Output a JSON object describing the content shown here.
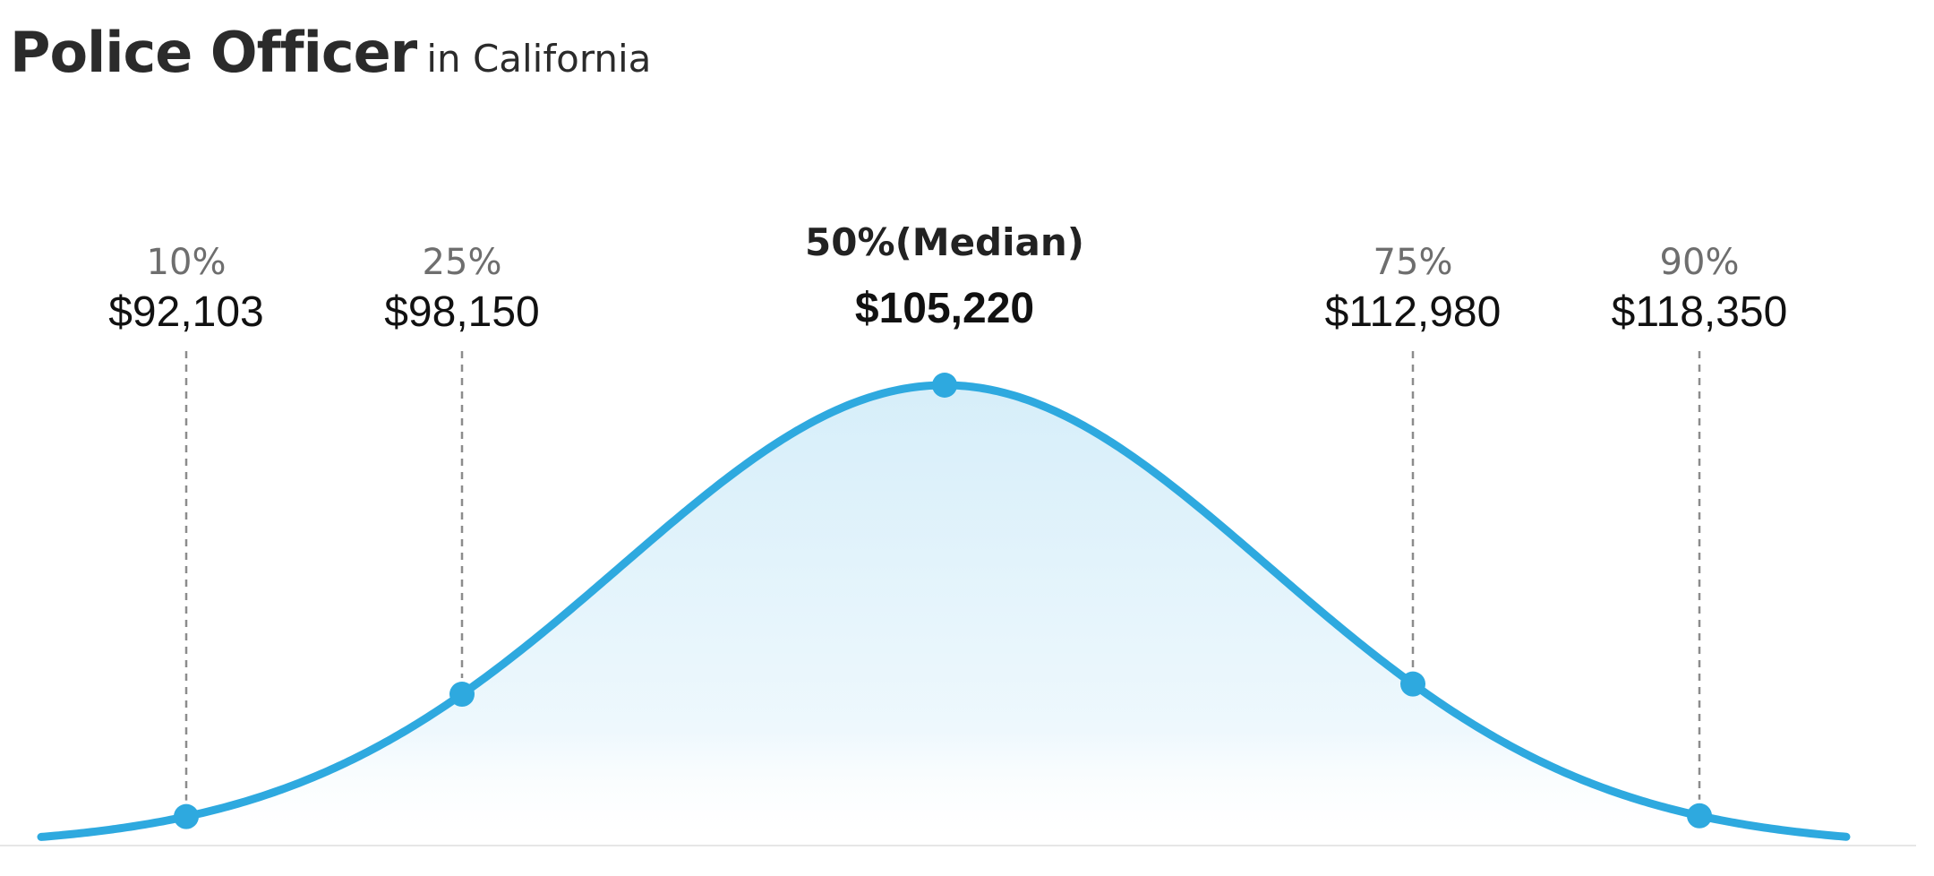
{
  "header": {
    "job_title": "Police Officer",
    "location_text": "in California"
  },
  "chart_data": {
    "type": "area",
    "title": "Police Officer in California",
    "xlabel": "",
    "ylabel": "",
    "grid": false,
    "percentiles": [
      {
        "label": "10%",
        "value_label": "$92,103",
        "value": 92103
      },
      {
        "label": "25%",
        "value_label": "$98,150",
        "value": 98150
      },
      {
        "label": "50%(Median)",
        "value_label": "$105,220",
        "value": 105220
      },
      {
        "label": "75%",
        "value_label": "$112,980",
        "value": 112980
      },
      {
        "label": "90%",
        "value_label": "$118,350",
        "value": 118350
      }
    ],
    "colors": {
      "curve": "#2ea9df",
      "fill": "#d9f0fa",
      "guide": "#8c8c8c",
      "baseline": "#e6e6e6"
    }
  }
}
